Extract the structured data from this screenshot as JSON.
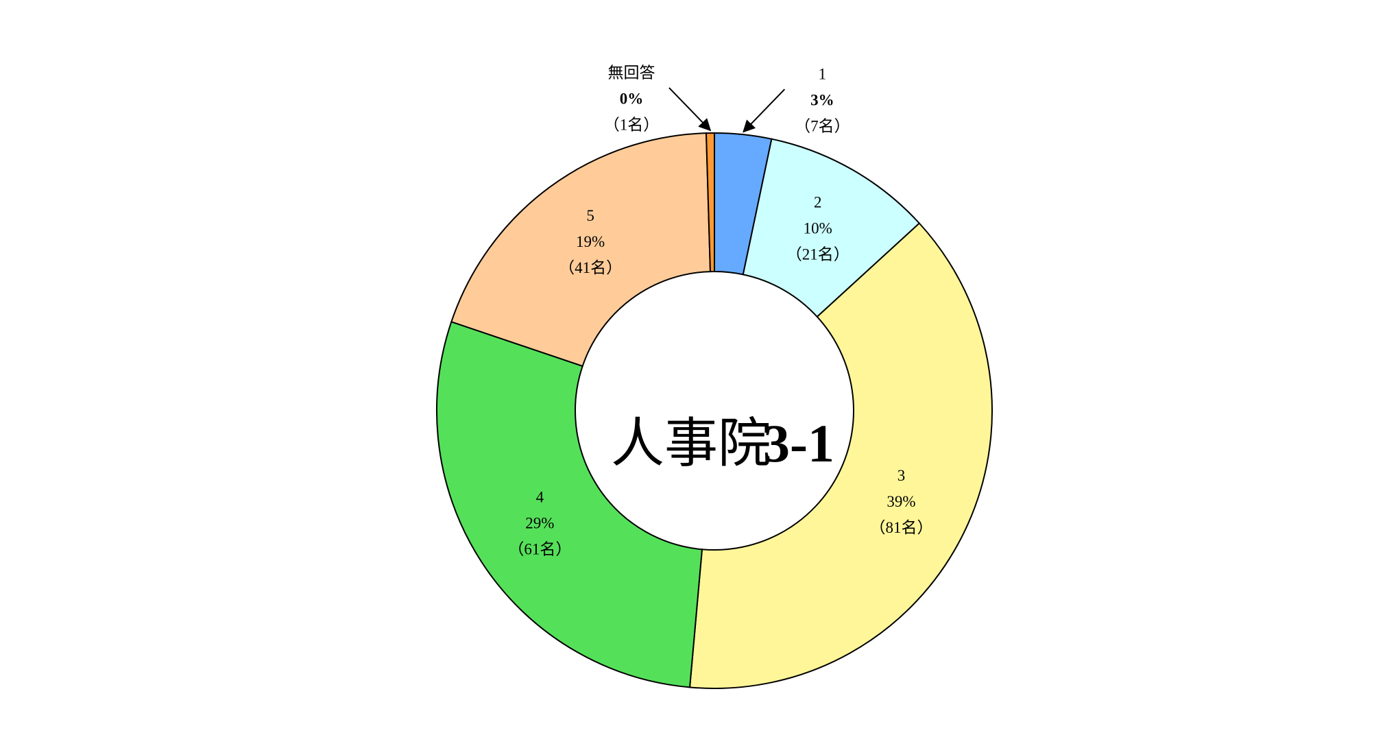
{
  "chart_data": {
    "type": "pie",
    "donut": true,
    "title": "人事院",
    "subtitle": "3-1",
    "categories": [
      "1",
      "2",
      "3",
      "4",
      "5",
      "無回答"
    ],
    "values": [
      7,
      21,
      81,
      61,
      41,
      1
    ],
    "value_labels": [
      "（7名）",
      "（21名）",
      "（81名）",
      "（61名）",
      "（41名）",
      "（1名）"
    ],
    "percentages": [
      3,
      10,
      39,
      29,
      19,
      0
    ],
    "percentage_labels": [
      "3%",
      "10%",
      "39%",
      "29%",
      "19%",
      "0%"
    ],
    "colors": [
      "#66aaff",
      "#ccffff",
      "#fff699",
      "#55e05a",
      "#ffcc99",
      "#ff9933"
    ]
  }
}
